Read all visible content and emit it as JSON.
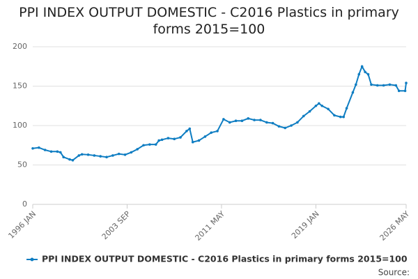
{
  "chart_data": {
    "type": "line",
    "title": "PPI INDEX OUTPUT DOMESTIC - C2016 Plastics in primary forms 2015=100",
    "x": [
      1996.0,
      1996.5,
      1997.0,
      1997.5,
      1998.0,
      1998.25,
      1998.5,
      1999.0,
      1999.25,
      1999.75,
      2000.0,
      2000.5,
      2001.0,
      2001.5,
      2002.0,
      2002.5,
      2003.0,
      2003.5,
      2004.0,
      2004.5,
      2005.0,
      2005.5,
      2006.0,
      2006.25,
      2006.5,
      2007.0,
      2007.5,
      2008.0,
      2008.5,
      2008.75,
      2009.0,
      2009.5,
      2010.0,
      2010.5,
      2011.0,
      2011.5,
      2012.0,
      2012.5,
      2013.0,
      2013.5,
      2014.0,
      2014.5,
      2015.0,
      2015.5,
      2016.0,
      2016.5,
      2017.0,
      2017.5,
      2018.0,
      2018.5,
      2019.0,
      2019.25,
      2019.5,
      2020.0,
      2020.5,
      2021.0,
      2021.25,
      2021.5,
      2022.0,
      2022.25,
      2022.5,
      2022.75,
      2023.0,
      2023.25,
      2023.5,
      2024.0,
      2024.5,
      2025.0,
      2025.5,
      2025.75,
      2026.25,
      2026.3333
    ],
    "series": [
      {
        "name": "PPI INDEX OUTPUT DOMESTIC - C2016 Plastics in primary forms 2015=100",
        "color": "#0e7dc2",
        "values": [
          71,
          72,
          69,
          67,
          67,
          66,
          60,
          57,
          56,
          62,
          63.5,
          63,
          62,
          61,
          60,
          62,
          64,
          63,
          66,
          70,
          75,
          76,
          76,
          81,
          82,
          84,
          83,
          85,
          93,
          96,
          79,
          81,
          86,
          91,
          93,
          108,
          104,
          106,
          106,
          109,
          107,
          107,
          104,
          103,
          99,
          97,
          100,
          104,
          112,
          118,
          125,
          128,
          125,
          121,
          113,
          111,
          111,
          122,
          142,
          152,
          165,
          175,
          168,
          165,
          152,
          151,
          151,
          152,
          151,
          144,
          144,
          154
        ]
      }
    ],
    "xlim": [
      1996.0,
      2026.3333
    ],
    "xticks": [
      {
        "value": 1996.0,
        "label": "1996 JAN"
      },
      {
        "value": 2003.6667,
        "label": "2003 SEP"
      },
      {
        "value": 2011.3333,
        "label": "2011 MAY"
      },
      {
        "value": 2019.0,
        "label": "2019 JAN"
      },
      {
        "value": 2026.3333,
        "label": "2026 MAY"
      }
    ],
    "ylim": [
      0,
      200
    ],
    "yticks": [
      0,
      50,
      100,
      150,
      200
    ],
    "grid": true,
    "source": "Source:"
  }
}
